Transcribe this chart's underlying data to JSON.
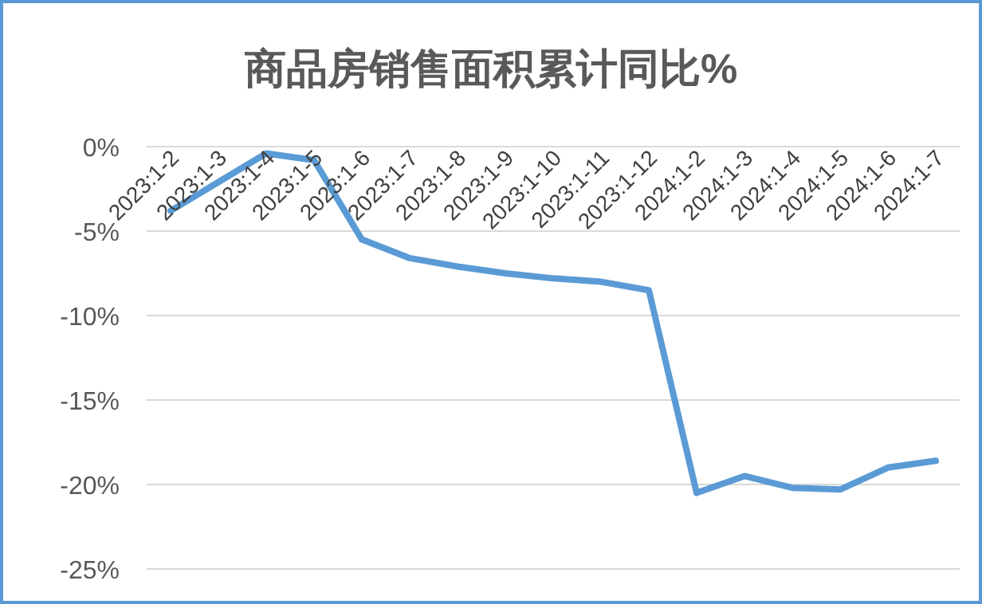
{
  "chart_data": {
    "type": "line",
    "title": "商品房销售面积累计同比%",
    "categories": [
      "2023:1-2",
      "2023:1-3",
      "2023:1-4",
      "2023:1-5",
      "2023:1-6",
      "2023:1-7",
      "2023:1-8",
      "2023:1-9",
      "2023:1-10",
      "2023:1-11",
      "2023:1-12",
      "2024:1-2",
      "2024:1-3",
      "2024:1-4",
      "2024:1-5",
      "2024:1-6",
      "2024:1-7"
    ],
    "series": [
      {
        "color": "#5b9bd5",
        "values": [
          -3.8,
          -2.1,
          -0.4,
          -0.8,
          -5.5,
          -6.6,
          -7.1,
          -7.5,
          -7.8,
          -8.0,
          -8.5,
          -20.5,
          -19.5,
          -20.2,
          -20.3,
          -19.0,
          -18.6
        ]
      }
    ],
    "ylim": [
      -25,
      0
    ],
    "yticks": [
      {
        "value": 0,
        "label": "0%"
      },
      {
        "value": -5,
        "label": "-5%"
      },
      {
        "value": -10,
        "label": "-10%"
      },
      {
        "value": -15,
        "label": "-15%"
      },
      {
        "value": -20,
        "label": "-20%"
      },
      {
        "value": -25,
        "label": "-25%"
      }
    ],
    "grid": "y",
    "marker": "none",
    "line_style": "solid"
  }
}
